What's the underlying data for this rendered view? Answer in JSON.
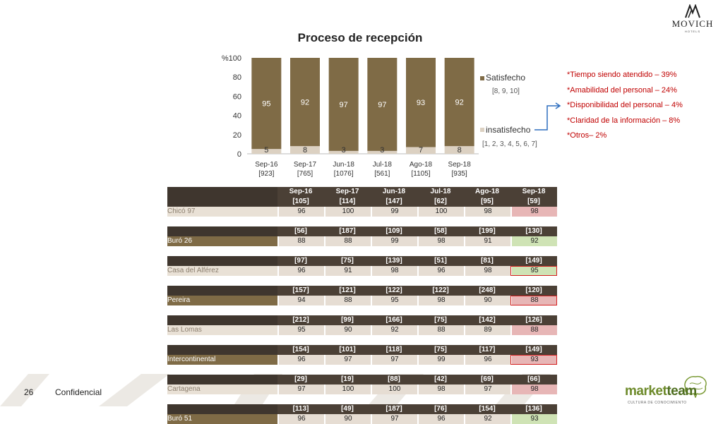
{
  "page": {
    "number": "26",
    "footer": "Confidencial"
  },
  "logo": {
    "brand": "MOVICH",
    "sub": "HOTELS"
  },
  "marketteam": {
    "name_a": "market",
    "name_b": "team",
    "tag": "CULTURA DE CONOCIMIENTO"
  },
  "colors": {
    "satisfecho": "#7f6b46",
    "insatisfecho": "#dcd1c2",
    "header": "#4b4036",
    "red_cell": "#e7b6b6",
    "green_cell": "#cfe3b5",
    "note_text": "#c00000"
  },
  "chart_data": {
    "type": "bar",
    "stacked": true,
    "title": "Proceso de recepción",
    "ylabel_unit": "%",
    "ylim": [
      0,
      100
    ],
    "yticks": [
      "0",
      "20",
      "40",
      "60",
      "80",
      "100"
    ],
    "categories": [
      "Sep-16",
      "Sep-17",
      "Jun-18",
      "Jul-18",
      "Ago-18",
      "Sep-18"
    ],
    "category_n": [
      "[923]",
      "[765]",
      "[1076]",
      "[561]",
      "[1105]",
      "[935]"
    ],
    "series": [
      {
        "name": "insatisfecho",
        "scale": "[1, 2, 3, 4, 5, 6, 7]",
        "values": [
          5,
          8,
          3,
          3,
          7,
          8
        ]
      },
      {
        "name": "Satisfecho",
        "scale": "[8, 9, 10]",
        "values": [
          95,
          92,
          97,
          97,
          93,
          92
        ]
      }
    ],
    "legend_position": "right"
  },
  "notes": [
    "*Tiempo siendo atendido – 39%",
    "*Amabilidad del personal – 24%",
    "*Disponibilidad del personal – 4%",
    "*Claridad de la información – 8%",
    "*Otros– 2%"
  ],
  "table": {
    "columns": [
      {
        "label": "Sep-16",
        "n": "[105]"
      },
      {
        "label": "Sep-17",
        "n": "[114]"
      },
      {
        "label": "Jun-18",
        "n": "[147]"
      },
      {
        "label": "Jul-18",
        "n": "[62]"
      },
      {
        "label": "Ago-18",
        "n": "[95]"
      },
      {
        "label": "Sep-18",
        "n": "[59]"
      }
    ],
    "rows": [
      {
        "name": "Chicó 97",
        "dark": false,
        "values": [
          "96",
          "100",
          "99",
          "100",
          "98",
          "98"
        ],
        "last_status": "red",
        "last_box": false
      },
      {
        "name": "Buró 26",
        "dark": true,
        "ns": [
          "[56]",
          "[187]",
          "[109]",
          "[58]",
          "[199]",
          "[130]"
        ],
        "values": [
          "88",
          "88",
          "99",
          "98",
          "91",
          "92"
        ],
        "last_status": "green",
        "last_box": false
      },
      {
        "name": "Casa del Alférez",
        "dark": false,
        "ns": [
          "[97]",
          "[75]",
          "[139]",
          "[51]",
          "[81]",
          "[149]"
        ],
        "values": [
          "96",
          "91",
          "98",
          "96",
          "98",
          "95"
        ],
        "last_status": "green",
        "last_box": true
      },
      {
        "name": "Pereira",
        "dark": true,
        "ns": [
          "[157]",
          "[121]",
          "[122]",
          "[122]",
          "[248]",
          "[120]"
        ],
        "values": [
          "94",
          "88",
          "95",
          "98",
          "90",
          "88"
        ],
        "last_status": "red",
        "last_box": true
      },
      {
        "name": "Las Lomas",
        "dark": false,
        "ns": [
          "[212]",
          "[99]",
          "[166]",
          "[75]",
          "[142]",
          "[126]"
        ],
        "values": [
          "95",
          "90",
          "92",
          "88",
          "89",
          "88"
        ],
        "last_status": "red",
        "last_box": false
      },
      {
        "name": "Intercontinental",
        "dark": true,
        "ns": [
          "[154]",
          "[101]",
          "[118]",
          "[75]",
          "[117]",
          "[149]"
        ],
        "values": [
          "96",
          "97",
          "97",
          "99",
          "96",
          "93"
        ],
        "last_status": "red",
        "last_box": true
      },
      {
        "name": "Cartagena",
        "dark": false,
        "ns": [
          "[29]",
          "[19]",
          "[88]",
          "[42]",
          "[69]",
          "[66]"
        ],
        "values": [
          "97",
          "100",
          "100",
          "98",
          "97",
          "98"
        ],
        "last_status": "red",
        "last_box": false
      },
      {
        "name": "Buró 51",
        "dark": true,
        "ns": [
          "[113]",
          "[49]",
          "[187]",
          "[76]",
          "[154]",
          "[136]"
        ],
        "values": [
          "96",
          "90",
          "97",
          "96",
          "92",
          "93"
        ],
        "last_status": "green",
        "last_box": false
      }
    ]
  }
}
